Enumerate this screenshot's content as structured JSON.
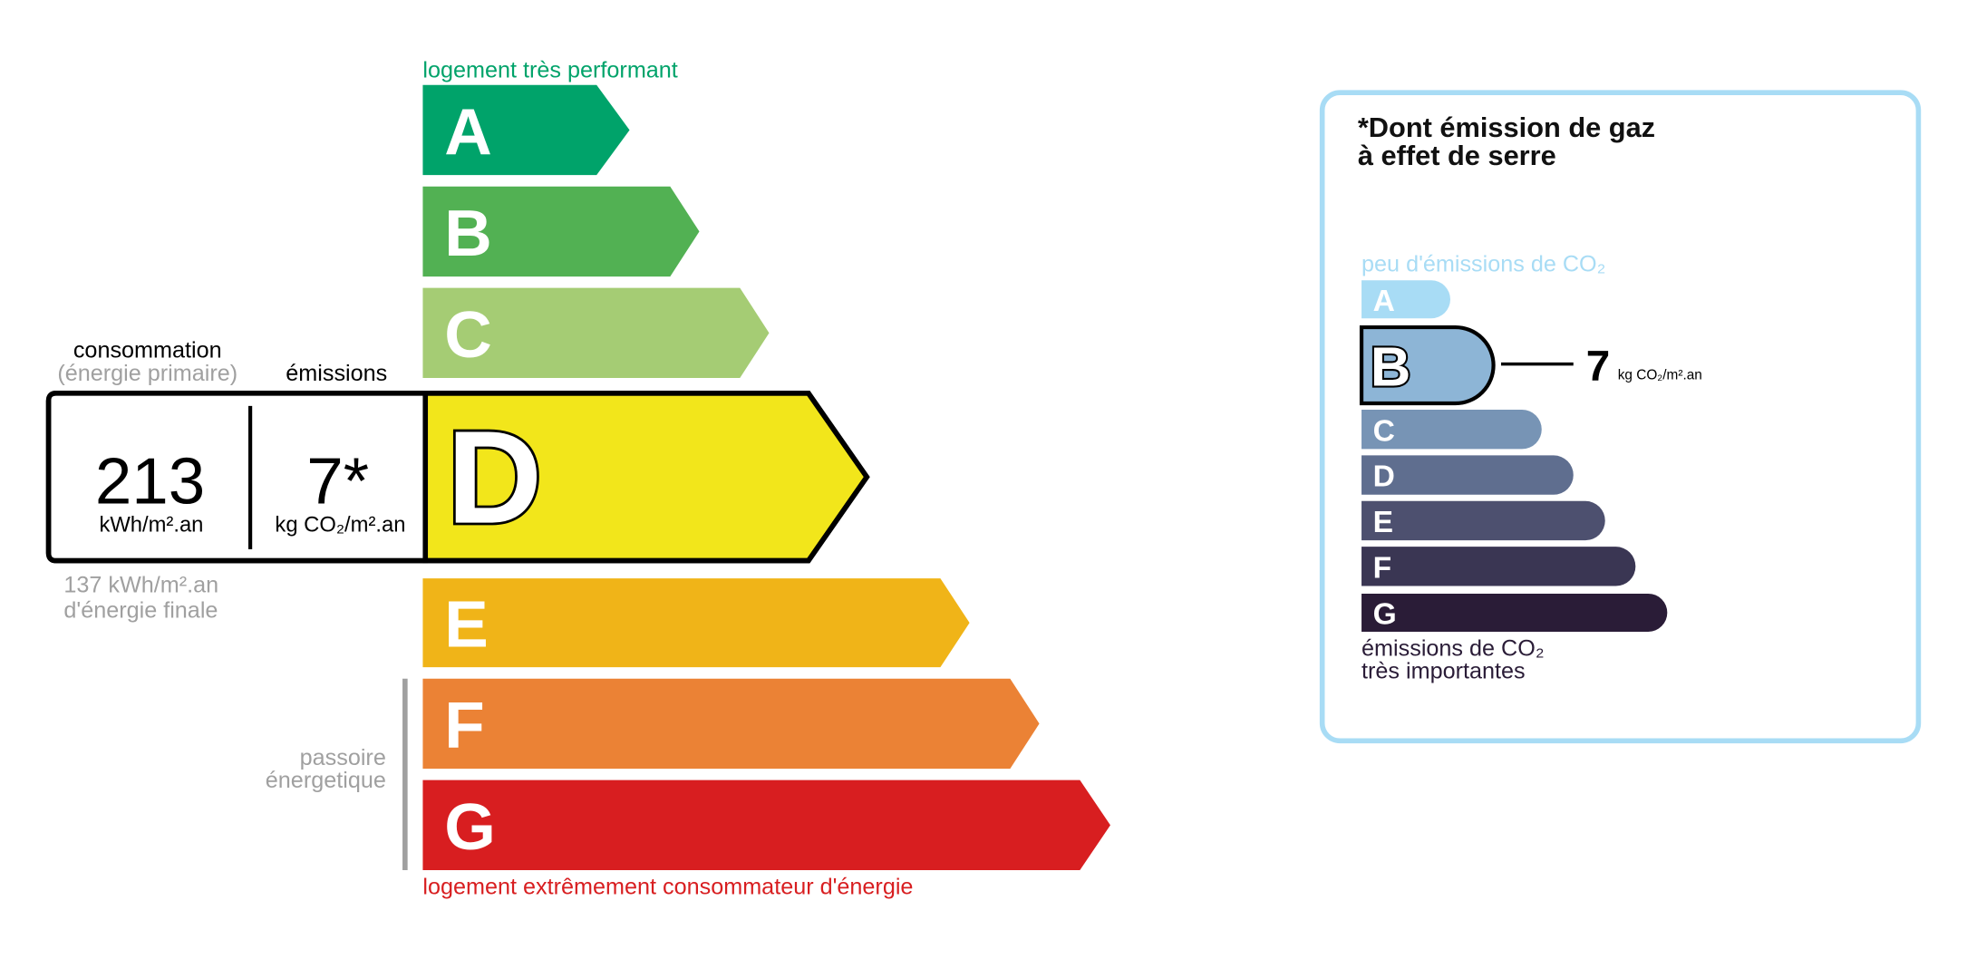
{
  "energy": {
    "top_label": "logement très performant",
    "bottom_label": "logement extrêmement consommateur d'énergie",
    "current_class": "D",
    "classes": [
      {
        "letter": "A",
        "color": "#00a36a"
      },
      {
        "letter": "B",
        "color": "#52b153"
      },
      {
        "letter": "C",
        "color": "#a5cc74"
      },
      {
        "letter": "D",
        "color": "#f2e61b"
      },
      {
        "letter": "E",
        "color": "#f0b418"
      },
      {
        "letter": "F",
        "color": "#eb8235"
      },
      {
        "letter": "G",
        "color": "#d81e20"
      }
    ],
    "consumption_label": "consommation",
    "consumption_sublabel": "(énergie primaire)",
    "emissions_label": "émissions",
    "consumption_value": "213",
    "consumption_unit": "kWh/m².an",
    "emissions_value": "7*",
    "emissions_unit": "kg CO₂/m².an",
    "final_energy_value": "137 kWh/m².an",
    "final_energy_label": "d'énergie finale",
    "passoire_line1": "passoire",
    "passoire_line2": "énergetique"
  },
  "ges": {
    "title_line1": "*Dont émission de gaz",
    "title_line2": "à effet de serre",
    "top_label": "peu d'émissions de CO₂",
    "bottom_label_line1": "émissions de CO₂",
    "bottom_label_line2": "très importantes",
    "current_class": "B",
    "value": "7",
    "unit": "kg CO₂/m².an",
    "border_color": "#a8dcf5",
    "classes": [
      {
        "letter": "A",
        "color": "#a8dcf5"
      },
      {
        "letter": "B",
        "color": "#8db5d6"
      },
      {
        "letter": "C",
        "color": "#7794b5"
      },
      {
        "letter": "D",
        "color": "#5f6e8f"
      },
      {
        "letter": "E",
        "color": "#4d506f"
      },
      {
        "letter": "F",
        "color": "#3a3653"
      },
      {
        "letter": "G",
        "color": "#2a1c37"
      }
    ]
  }
}
